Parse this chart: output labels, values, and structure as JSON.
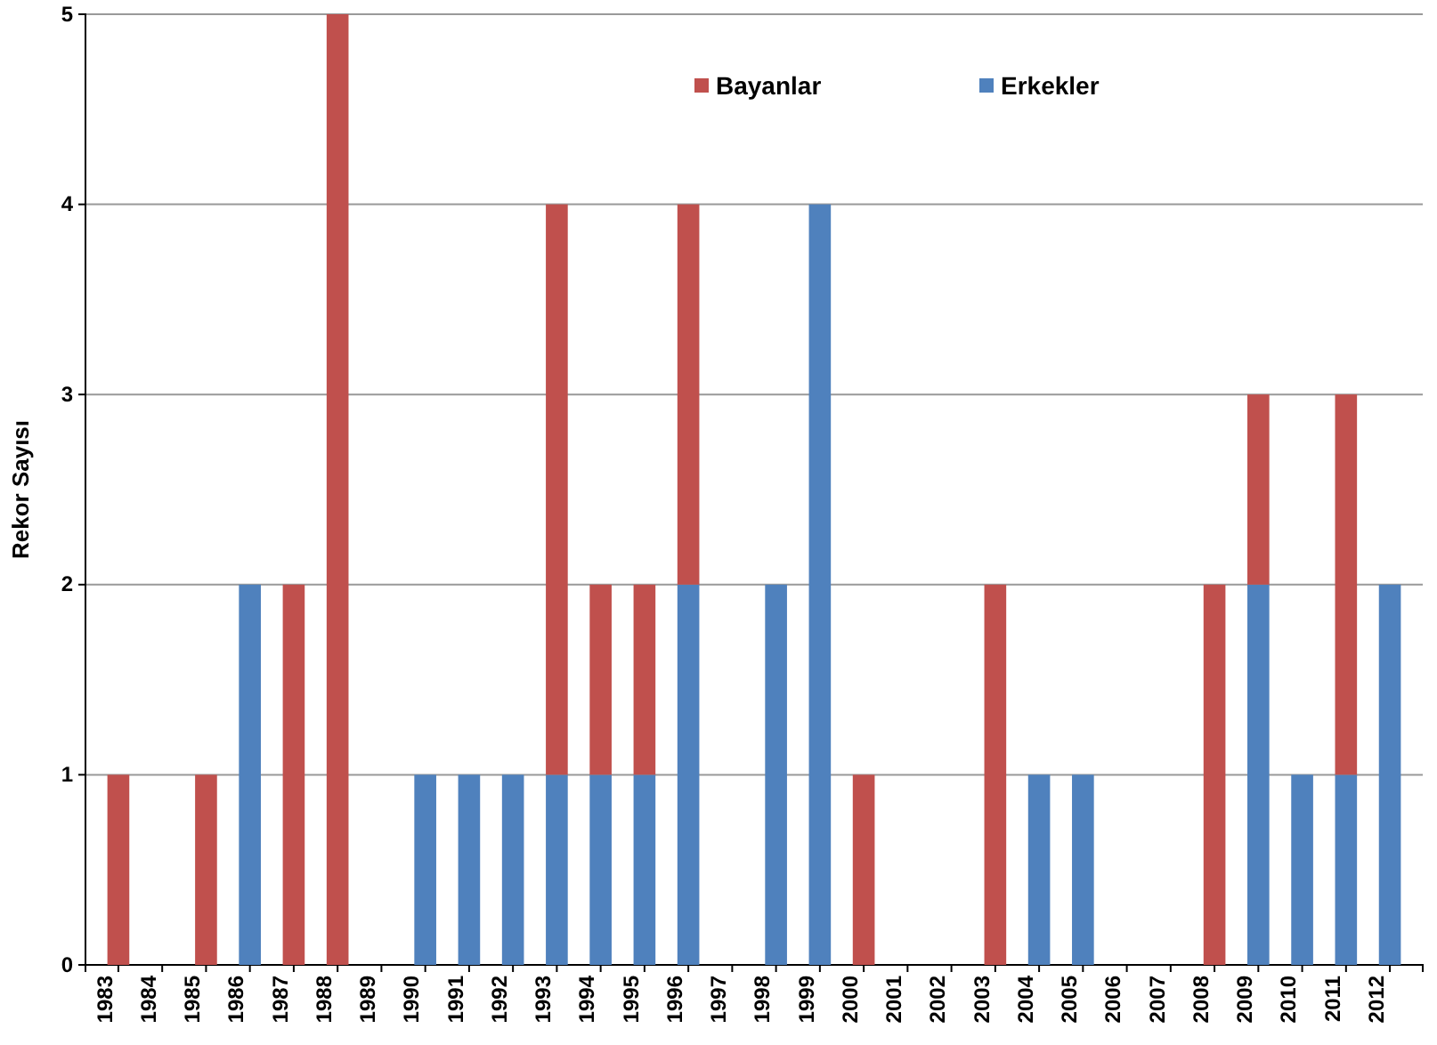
{
  "chart_data": {
    "type": "bar",
    "stacked": true,
    "ylabel": "Rekor Sayısı",
    "categories": [
      "1983",
      "1984",
      "1985",
      "1986",
      "1987",
      "1988",
      "1989",
      "1990",
      "1991",
      "1992",
      "1993",
      "1994",
      "1995",
      "1996",
      "1997",
      "1998",
      "1999",
      "2000",
      "2001",
      "2002",
      "2003",
      "2004",
      "2005",
      "2006",
      "2007",
      "2008",
      "2009",
      "2010",
      "2011",
      "2012"
    ],
    "series": [
      {
        "name": "Erkekler",
        "color": "#4f81bd",
        "values": [
          0,
          0,
          0,
          2,
          0,
          0,
          0,
          1,
          1,
          1,
          1,
          1,
          1,
          2,
          0,
          2,
          4,
          0,
          0,
          0,
          0,
          1,
          1,
          0,
          0,
          0,
          2,
          1,
          1,
          2
        ]
      },
      {
        "name": "Bayanlar",
        "color": "#c0504d",
        "values": [
          1,
          0,
          1,
          0,
          2,
          5,
          0,
          0,
          0,
          0,
          3,
          1,
          1,
          2,
          0,
          0,
          0,
          1,
          0,
          0,
          2,
          0,
          0,
          0,
          0,
          2,
          1,
          0,
          2,
          0
        ]
      }
    ],
    "ylim": [
      0,
      5
    ],
    "yticks": [
      0,
      1,
      2,
      3,
      4,
      5
    ],
    "grid": "y",
    "legend": "top"
  }
}
